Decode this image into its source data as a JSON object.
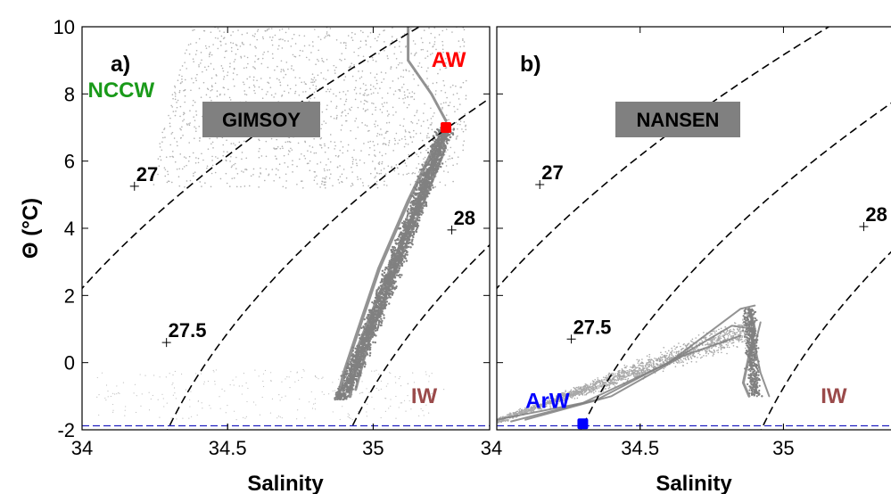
{
  "chart_data": [
    {
      "type": "scatter",
      "panel_label": "a)",
      "title": "GIMSOY",
      "xlabel": "Salinity",
      "ylabel": "Θ (°C)",
      "xlim": [
        34,
        35.4
      ],
      "ylim": [
        -2,
        10
      ],
      "xticks": [
        "34",
        "34.5",
        "35"
      ],
      "yticks": [
        "-2",
        "0",
        "2",
        "4",
        "6",
        "8",
        "10"
      ],
      "freezing_line_y": -1.88,
      "water_masses": [
        {
          "label": "NCCW",
          "color": "#1a9a1a",
          "x": 34.02,
          "y": 7.9
        },
        {
          "label": "AW",
          "color": "#ff0000",
          "x": 35.2,
          "y": 8.8
        },
        {
          "label": "IW",
          "color": "#9a4a4a",
          "x": 35.13,
          "y": -1.2
        }
      ],
      "markers": [
        {
          "x": 35.25,
          "y": 7.0,
          "color": "#ff0000"
        }
      ],
      "isopycnals": [
        {
          "label": "27",
          "x": 34.18,
          "y": 5.25
        },
        {
          "label": "27.5",
          "x": 34.29,
          "y": 0.6
        },
        {
          "label": "28",
          "x": 35.27,
          "y": 3.95
        }
      ],
      "cloud_color": "#808080",
      "grey_strokes": [
        {
          "name": "dense-core-1",
          "w": 4,
          "pts": [
            [
              35.26,
              7.0
            ],
            [
              35.2,
              5.8
            ],
            [
              35.12,
              4.0
            ],
            [
              35.02,
              2.0
            ],
            [
              34.95,
              0.5
            ],
            [
              34.92,
              -1.0
            ]
          ]
        },
        {
          "name": "dense-core-2",
          "w": 4,
          "pts": [
            [
              35.22,
              6.6
            ],
            [
              35.12,
              4.8
            ],
            [
              35.02,
              2.8
            ],
            [
              34.95,
              1.0
            ],
            [
              34.9,
              -0.3
            ],
            [
              34.88,
              -1.0
            ]
          ]
        },
        {
          "name": "dense-core-3",
          "w": 3,
          "pts": [
            [
              35.24,
              6.2
            ],
            [
              35.16,
              4.5
            ],
            [
              35.07,
              2.6
            ],
            [
              34.99,
              0.8
            ],
            [
              34.94,
              -0.8
            ]
          ]
        },
        {
          "name": "upper-spray",
          "w": 3,
          "pts": [
            [
              35.12,
              10.0
            ],
            [
              35.12,
              9.0
            ],
            [
              35.2,
              8.0
            ],
            [
              35.25,
              7.2
            ]
          ]
        }
      ]
    },
    {
      "type": "scatter",
      "panel_label": "b)",
      "title": "NANSEN",
      "xlabel": "Salinity",
      "ylabel": "",
      "xlim": [
        34,
        35.4
      ],
      "ylim": [
        -2,
        10
      ],
      "xticks": [
        "34.5",
        "35"
      ],
      "yticks": [],
      "freezing_line_y": -1.88,
      "water_masses": [
        {
          "label": "ArW",
          "color": "#0000ff",
          "x": 34.1,
          "y": -1.35
        },
        {
          "label": "IW",
          "color": "#9a4a4a",
          "x": 35.13,
          "y": -1.2
        }
      ],
      "markers": [
        {
          "x": 34.3,
          "y": -1.82,
          "color": "#0000ff"
        }
      ],
      "isopycnals": [
        {
          "label": "27",
          "x": 34.15,
          "y": 5.3
        },
        {
          "label": "27.5",
          "x": 34.26,
          "y": 0.7
        },
        {
          "label": "28",
          "x": 35.28,
          "y": 4.05
        }
      ],
      "cloud_color": "#808080",
      "grey_strokes": [
        {
          "name": "fan-upper",
          "w": 2,
          "pts": [
            [
              34.0,
              -1.7
            ],
            [
              34.3,
              -1.2
            ],
            [
              34.6,
              0.0
            ],
            [
              34.85,
              1.6
            ],
            [
              34.9,
              1.7
            ]
          ]
        },
        {
          "name": "fan-mid",
          "w": 2,
          "pts": [
            [
              34.05,
              -1.75
            ],
            [
              34.35,
              -1.1
            ],
            [
              34.62,
              0.1
            ],
            [
              34.82,
              1.1
            ],
            [
              34.9,
              1.0
            ]
          ]
        },
        {
          "name": "fan-lower",
          "w": 2,
          "pts": [
            [
              34.1,
              -1.7
            ],
            [
              34.4,
              -1.0
            ],
            [
              34.65,
              0.2
            ],
            [
              34.85,
              0.8
            ]
          ]
        },
        {
          "name": "plume-tail-1",
          "w": 3,
          "pts": [
            [
              34.88,
              1.6
            ],
            [
              34.9,
              1.0
            ],
            [
              34.88,
              0.2
            ],
            [
              34.86,
              -0.6
            ],
            [
              34.88,
              -1.0
            ]
          ]
        },
        {
          "name": "plume-tail-2",
          "w": 2,
          "pts": [
            [
              34.92,
              1.2
            ],
            [
              34.9,
              0.5
            ],
            [
              34.92,
              -0.3
            ],
            [
              34.95,
              -1.0
            ]
          ]
        }
      ]
    }
  ]
}
